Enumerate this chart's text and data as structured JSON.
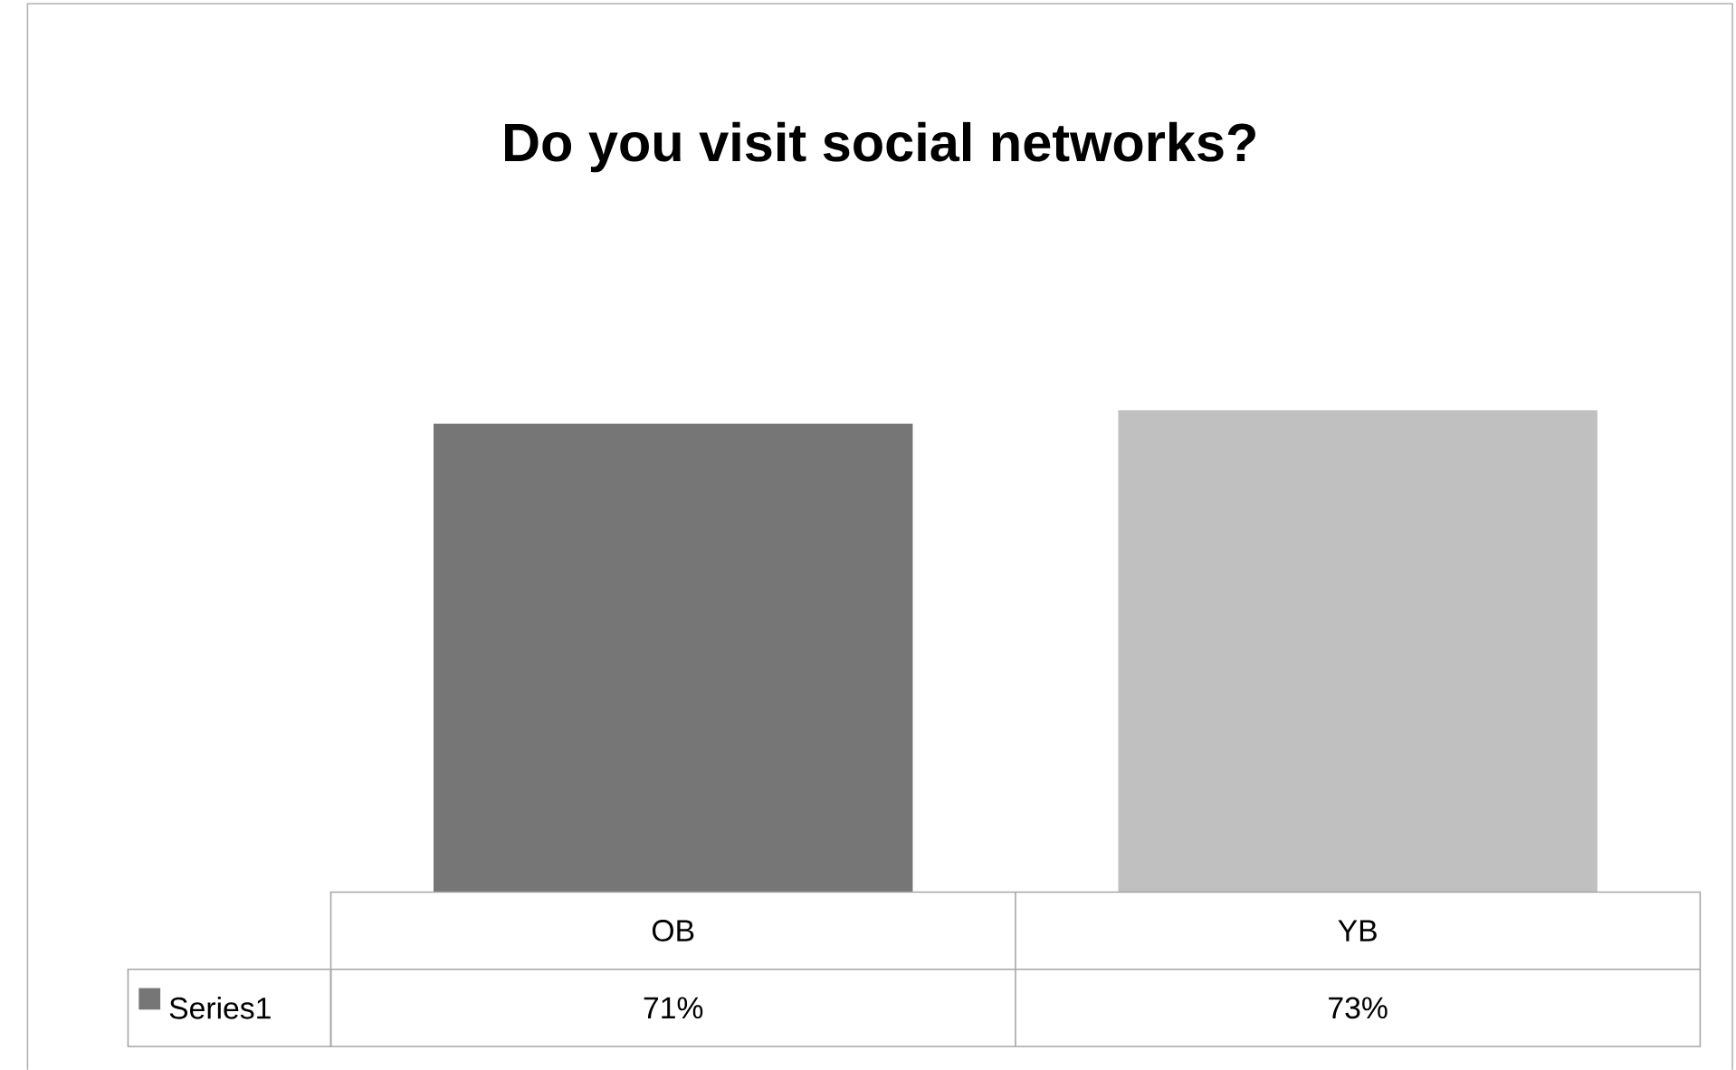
{
  "chart_data": {
    "type": "bar",
    "title": "Do you visit social networks?",
    "categories": [
      "OB",
      "YB"
    ],
    "series": [
      {
        "name": "Series1",
        "color": "#767676",
        "colors": [
          "#767676",
          "#c0c0c0"
        ],
        "values": [
          71,
          73
        ],
        "value_labels": [
          "71%",
          "73%"
        ]
      }
    ]
  }
}
